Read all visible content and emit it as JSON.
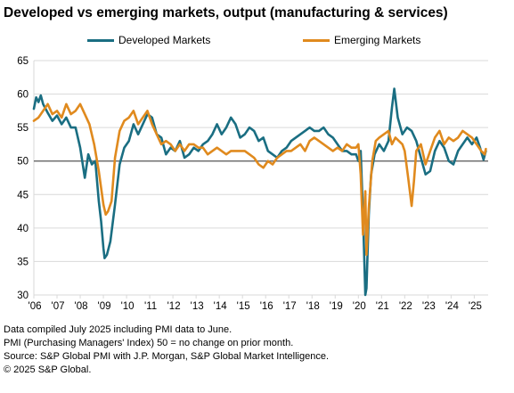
{
  "title": "Developed vs emerging markets, output (manufacturing & services)",
  "notes": [
    "Data compiled July 2025 including PMI data to June.",
    "PMI (Purchasing Managers' Index) 50 = no change on prior month.",
    "Source: S&P Global PMI with J.P. Morgan, S&P Global Market Intelligence.",
    "© 2025 S&P Global."
  ],
  "colors": {
    "developed": "#1a6e82",
    "emerging": "#e08a1e",
    "grid": "#d9d9d9",
    "baseline": "#595959"
  },
  "chart_data": {
    "type": "line",
    "title": "Developed vs emerging markets, output (manufacturing & services)",
    "xlabel": "",
    "ylabel": "",
    "ylim": [
      30,
      65
    ],
    "yticks": [
      30,
      35,
      40,
      45,
      50,
      55,
      60,
      65
    ],
    "xlim": [
      2006.0,
      2025.6
    ],
    "xtick_labels": [
      "'06",
      "'07",
      "'08",
      "'09",
      "'10",
      "'11",
      "'12",
      "'13",
      "'14",
      "'15",
      "'16",
      "'17",
      "'18",
      "'19",
      "'20",
      "'21",
      "'22",
      "'23",
      "'24",
      "'25"
    ],
    "grid": true,
    "legend": "top",
    "reference_line": 50,
    "series": [
      {
        "name": "Developed Markets",
        "color": "#1a6e82",
        "x": [
          2006.0,
          2006.1,
          2006.2,
          2006.3,
          2006.4,
          2006.6,
          2006.8,
          2007.0,
          2007.2,
          2007.4,
          2007.6,
          2007.8,
          2008.0,
          2008.2,
          2008.35,
          2008.5,
          2008.65,
          2008.8,
          2008.9,
          2009.0,
          2009.05,
          2009.15,
          2009.3,
          2009.5,
          2009.7,
          2009.9,
          2010.1,
          2010.3,
          2010.5,
          2010.7,
          2010.9,
          2011.1,
          2011.3,
          2011.5,
          2011.7,
          2011.9,
          2012.1,
          2012.3,
          2012.5,
          2012.7,
          2012.9,
          2013.1,
          2013.3,
          2013.5,
          2013.7,
          2013.9,
          2014.1,
          2014.3,
          2014.5,
          2014.7,
          2014.9,
          2015.1,
          2015.3,
          2015.5,
          2015.7,
          2015.9,
          2016.1,
          2016.3,
          2016.5,
          2016.7,
          2016.9,
          2017.1,
          2017.3,
          2017.5,
          2017.7,
          2017.9,
          2018.1,
          2018.3,
          2018.5,
          2018.7,
          2018.9,
          2019.1,
          2019.3,
          2019.5,
          2019.7,
          2019.9,
          2020.0,
          2020.1,
          2020.2,
          2020.3,
          2020.35,
          2020.45,
          2020.55,
          2020.7,
          2020.9,
          2021.1,
          2021.3,
          2021.45,
          2021.55,
          2021.7,
          2021.9,
          2022.1,
          2022.3,
          2022.5,
          2022.7,
          2022.9,
          2023.1,
          2023.3,
          2023.5,
          2023.7,
          2023.9,
          2024.1,
          2024.3,
          2024.5,
          2024.7,
          2024.9,
          2025.1,
          2025.25,
          2025.4,
          2025.5
        ],
        "values": [
          57.8,
          59.5,
          58.8,
          59.8,
          58.5,
          57.2,
          56.0,
          56.8,
          55.5,
          56.5,
          55.0,
          55.0,
          52.0,
          47.5,
          51.0,
          49.5,
          50.0,
          44.0,
          41.0,
          37.0,
          35.5,
          36.0,
          38.0,
          43.5,
          49.5,
          52.0,
          53.0,
          55.5,
          54.0,
          55.5,
          57.0,
          56.5,
          54.0,
          53.5,
          51.0,
          52.0,
          51.5,
          53.0,
          50.5,
          51.0,
          52.0,
          51.5,
          52.5,
          53.0,
          54.0,
          55.5,
          54.0,
          55.0,
          56.5,
          55.5,
          53.5,
          54.0,
          55.0,
          54.5,
          53.0,
          53.5,
          51.5,
          51.0,
          50.5,
          51.5,
          52.0,
          53.0,
          53.5,
          54.0,
          54.5,
          55.0,
          54.5,
          54.5,
          55.0,
          54.0,
          53.5,
          52.5,
          51.5,
          51.5,
          51.0,
          51.0,
          50.0,
          51.5,
          42.0,
          30.0,
          31.0,
          42.0,
          48.0,
          51.0,
          52.5,
          51.5,
          53.0,
          58.0,
          60.8,
          56.5,
          54.0,
          55.0,
          54.5,
          53.0,
          50.5,
          48.0,
          48.5,
          51.5,
          53.0,
          52.0,
          50.0,
          49.5,
          51.5,
          52.5,
          53.5,
          52.5,
          53.5,
          52.0,
          50.2,
          51.5
        ]
      },
      {
        "name": "Emerging Markets",
        "color": "#e08a1e",
        "x": [
          2006.0,
          2006.2,
          2006.4,
          2006.6,
          2006.8,
          2007.0,
          2007.2,
          2007.4,
          2007.6,
          2007.8,
          2008.0,
          2008.2,
          2008.4,
          2008.6,
          2008.8,
          2009.0,
          2009.1,
          2009.2,
          2009.35,
          2009.5,
          2009.7,
          2009.9,
          2010.1,
          2010.3,
          2010.5,
          2010.7,
          2010.9,
          2011.1,
          2011.3,
          2011.5,
          2011.7,
          2011.9,
          2012.1,
          2012.3,
          2012.5,
          2012.7,
          2012.9,
          2013.1,
          2013.3,
          2013.5,
          2013.7,
          2013.9,
          2014.1,
          2014.3,
          2014.5,
          2014.7,
          2014.9,
          2015.1,
          2015.3,
          2015.5,
          2015.7,
          2015.9,
          2016.1,
          2016.3,
          2016.5,
          2016.7,
          2016.9,
          2017.1,
          2017.3,
          2017.5,
          2017.7,
          2017.9,
          2018.1,
          2018.3,
          2018.5,
          2018.7,
          2018.9,
          2019.1,
          2019.3,
          2019.5,
          2019.7,
          2019.9,
          2020.0,
          2020.1,
          2020.2,
          2020.3,
          2020.35,
          2020.45,
          2020.6,
          2020.75,
          2020.9,
          2021.1,
          2021.3,
          2021.45,
          2021.6,
          2021.75,
          2021.9,
          2022.0,
          2022.15,
          2022.3,
          2022.4,
          2022.5,
          2022.7,
          2022.9,
          2023.1,
          2023.3,
          2023.5,
          2023.7,
          2023.9,
          2024.1,
          2024.3,
          2024.5,
          2024.7,
          2024.9,
          2025.1,
          2025.3,
          2025.45,
          2025.5
        ],
        "values": [
          56.0,
          56.5,
          57.5,
          58.5,
          57.0,
          57.5,
          56.5,
          58.5,
          57.0,
          57.5,
          58.5,
          57.0,
          55.5,
          52.5,
          48.5,
          43.5,
          42.0,
          42.5,
          44.0,
          50.5,
          54.5,
          56.0,
          56.5,
          57.5,
          55.5,
          56.5,
          57.5,
          55.5,
          54.0,
          52.5,
          53.0,
          52.5,
          51.5,
          52.5,
          51.5,
          52.5,
          52.5,
          52.0,
          52.0,
          51.0,
          51.5,
          52.0,
          51.5,
          51.0,
          51.5,
          51.5,
          51.5,
          51.5,
          51.0,
          50.5,
          49.5,
          49.0,
          50.0,
          49.5,
          50.5,
          51.0,
          51.5,
          51.5,
          52.0,
          52.5,
          51.5,
          53.0,
          53.5,
          53.0,
          52.5,
          52.0,
          51.5,
          52.0,
          51.5,
          52.5,
          52.0,
          52.0,
          52.5,
          48.0,
          39.0,
          45.5,
          36.0,
          43.0,
          50.0,
          53.0,
          53.5,
          54.0,
          54.5,
          52.5,
          53.5,
          53.0,
          52.5,
          51.5,
          47.5,
          43.3,
          47.0,
          51.5,
          52.5,
          49.5,
          51.5,
          53.5,
          54.5,
          52.5,
          53.5,
          53.0,
          53.5,
          54.5,
          54.0,
          53.5,
          52.5,
          51.5,
          51.0,
          51.8
        ]
      }
    ]
  }
}
